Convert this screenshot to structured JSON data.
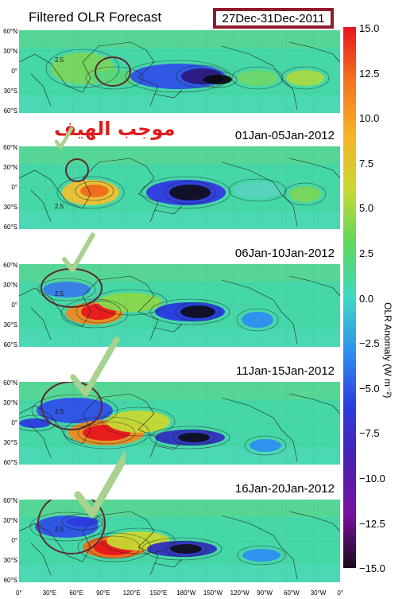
{
  "title": "Filtered OLR  Forecast",
  "first_period": "27Dec-31Dec-2011",
  "arabic_annotation": "موجب الهيف",
  "panels": [
    {
      "label": "27Dec-31Dec-2011"
    },
    {
      "label": "01Jan-05Jan-2012"
    },
    {
      "label": "06Jan-10Jan-2012"
    },
    {
      "label": "11Jan-15Jan-2012"
    },
    {
      "label": "16Jan-20Jan-2012"
    }
  ],
  "lat_labels": [
    "60°N",
    "30°N",
    "0°",
    "30°S",
    "60°S"
  ],
  "lon_labels": [
    "0°",
    "30°E",
    "60°E",
    "90°E",
    "120°E",
    "150°E",
    "180°W",
    "150°W",
    "120°W",
    "90°W",
    "60°W",
    "30°W",
    "0°"
  ],
  "colorbar": {
    "label": "OLR Anomaly (W m⁻²)",
    "ticks": [
      "15.0",
      "12.5",
      "10.0",
      "7.5",
      "5.0",
      "2.5",
      "0.0",
      "−2.5",
      "−5.0",
      "−7.5",
      "−10.0",
      "−12.5",
      "−15.0"
    ],
    "colors": [
      "#e8161c",
      "#f4731e",
      "#f7b326",
      "#c8d833",
      "#5cd85c",
      "#3ed9c3",
      "#2e8ff0",
      "#2b3ce0",
      "#4820b0",
      "#7a10a0",
      "#1a0a1a"
    ]
  },
  "contour_label": "2.5"
}
